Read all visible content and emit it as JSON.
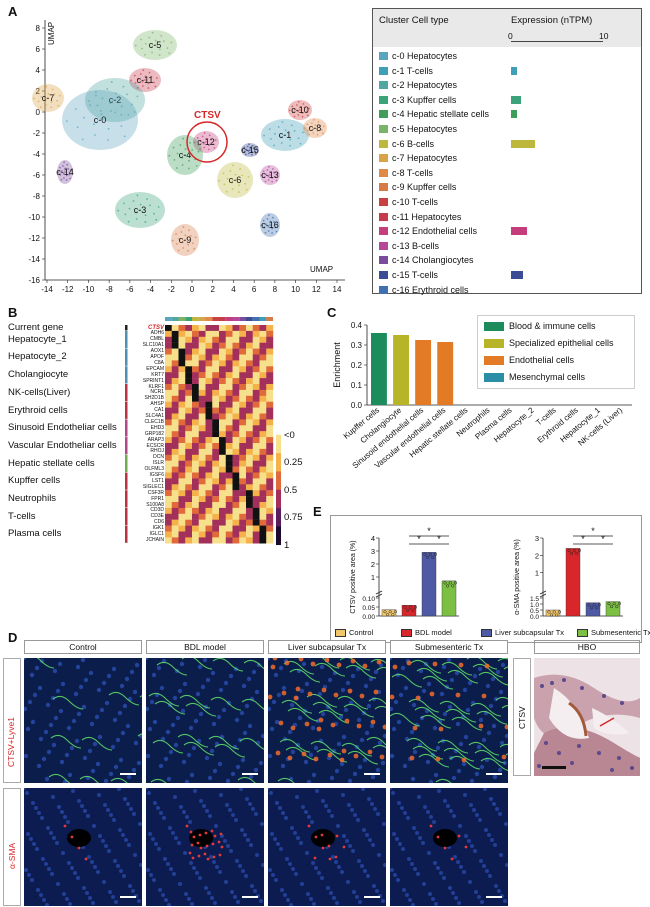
{
  "panel_labels": {
    "a": "A",
    "b": "B",
    "c": "C",
    "d": "D",
    "e": "E",
    "f": "F"
  },
  "umap": {
    "y_axis_label": "UMAP",
    "x_axis_label": "UMAP",
    "y_ticks": [
      "8",
      "6",
      "4",
      "2",
      "0",
      "-2",
      "-4",
      "-6",
      "-8",
      "-10",
      "-12",
      "-14",
      "-16"
    ],
    "x_ticks": [
      "-14",
      "-12",
      "-10",
      "-8",
      "-6",
      "-4",
      "-2",
      "0",
      "2",
      "4",
      "6",
      "8",
      "10",
      "12",
      "14"
    ],
    "highlight": "CTSV",
    "cluster_labels": [
      "c-5",
      "c-7",
      "c-11",
      "c-2",
      "c-0",
      "c-12",
      "c-4",
      "c-10",
      "c-1",
      "c-8",
      "c-15",
      "c-14",
      "c-6",
      "c-13",
      "c-3",
      "c-9",
      "c-16"
    ]
  },
  "legend_table": {
    "col1": "Cluster Cell type",
    "col2": "Expression (nTPM)",
    "tick_min": "0",
    "tick_max": "10",
    "rows": [
      {
        "label": "c-0  Hepatocytes",
        "color": "#5BA3BE",
        "bar": 0
      },
      {
        "label": "c-1  T-cells",
        "color": "#3F9FB8",
        "bar": 0.6
      },
      {
        "label": "c-2  Hepatocytes",
        "color": "#4FA7A0",
        "bar": 0
      },
      {
        "label": "c-3  Kupffer cells",
        "color": "#3BA37A",
        "bar": 1.1
      },
      {
        "label": "c-4  Hepatic stellate cells",
        "color": "#3F9E5A",
        "bar": 0.6
      },
      {
        "label": "c-5  Hepatocytes",
        "color": "#7BB467",
        "bar": 0
      },
      {
        "label": "c-6  B-cells",
        "color": "#BDB83C",
        "bar": 2.6
      },
      {
        "label": "c-7  Hepatocytes",
        "color": "#D9A34A",
        "bar": 0
      },
      {
        "label": "c-8  T-cells",
        "color": "#E08A4A",
        "bar": 0
      },
      {
        "label": "c-9  Kupffer cells",
        "color": "#D67B47",
        "bar": 0
      },
      {
        "label": "c-10  T-cells",
        "color": "#C9413F",
        "bar": 0
      },
      {
        "label": "c-11  Hepatocytes",
        "color": "#C63B4E",
        "bar": 0
      },
      {
        "label": "c-12  Endothelial cells",
        "color": "#C53D7A",
        "bar": 1.7
      },
      {
        "label": "c-13  B-cells",
        "color": "#B5489A",
        "bar": 0
      },
      {
        "label": "c-14  Cholangiocytes",
        "color": "#7C4C9C",
        "bar": 0
      },
      {
        "label": "c-15  T-cells",
        "color": "#3C4C94",
        "bar": 1.3
      },
      {
        "label": "c-16  Erythroid cells",
        "color": "#3F70B0",
        "bar": 0
      }
    ]
  },
  "heatmap": {
    "row_groups": [
      {
        "label": "Current gene",
        "genes": [
          "CTSV"
        ],
        "color": "#222"
      },
      {
        "label": "Hepatocyte_1",
        "genes": [
          "ADH6",
          "CMBL",
          "SLC10A1"
        ],
        "color": "#4F8FB0"
      },
      {
        "label": "Hepatocyte_2",
        "genes": [
          "AOX1",
          "APOF",
          "C8A"
        ],
        "color": "#4F8FB0"
      },
      {
        "label": "Cholangiocyte",
        "genes": [
          "EPCAM",
          "KRT7",
          "SPRINT1"
        ],
        "color": "#4F8FB0"
      },
      {
        "label": "NK-cells(Liver)",
        "genes": [
          "KLRF1",
          "NCR1",
          "SH2D1B"
        ],
        "color": "#B9323F"
      },
      {
        "label": "Erythroid cells",
        "genes": [
          "AHSP",
          "CA1",
          "SLC4A1"
        ],
        "color": "#B9323F"
      },
      {
        "label": "Sinusoid Endotheliar cells",
        "genes": [
          "CLEC1B",
          "EHD3",
          "GRP182"
        ],
        "color": "#B04A86"
      },
      {
        "label": "Vascular Endotheliar cells",
        "genes": [
          "ARAP3",
          "ECSCR",
          "RHOJ"
        ],
        "color": "#B04A86"
      },
      {
        "label": "Hepatic stellate cells",
        "genes": [
          "DCN",
          "ISLR",
          "OLFML3"
        ],
        "color": "#6FAE4E"
      },
      {
        "label": "Kupffer cells",
        "genes": [
          "IGSF6",
          "LST1",
          "SIGLEC1"
        ],
        "color": "#B9323F"
      },
      {
        "label": "Neutrophils",
        "genes": [
          "CSF3R",
          "FPR1",
          "S100A8"
        ],
        "color": "#B9323F"
      },
      {
        "label": "T-cells",
        "genes": [
          "CD3D",
          "CD3E",
          "CD6"
        ],
        "color": "#B9323F"
      },
      {
        "label": "Plasma cells",
        "genes": [
          "IGK1",
          "IGLC1",
          "JCHAIN"
        ],
        "color": "#B9323F"
      }
    ],
    "colorbar": [
      "<0",
      "0.25",
      "0.5",
      "0.75",
      "1"
    ]
  },
  "chart_data": [
    {
      "type": "bar",
      "panel": "C",
      "ylabel": "Enrichment",
      "ylim": [
        0,
        0.4
      ],
      "yticks": [
        "0.0",
        "0.1",
        "0.2",
        "0.3",
        "0.4"
      ],
      "categories": [
        "Kupffer cells",
        "Cholangiocyte",
        "Sinusoid endothelial cells",
        "Vascular endothelial cells",
        "Hepatic stellate cells",
        "Neutrophils",
        "Plasma cells",
        "Hepatocyte_2",
        "T-cells",
        "Erythroid cells",
        "Hepatocyte_1",
        "NK-cells (Liver)"
      ],
      "values": [
        0.36,
        0.35,
        0.325,
        0.315,
        0,
        0,
        0,
        0,
        0,
        0,
        0,
        0
      ],
      "bar_colors": [
        "#1C8C5C",
        "#B8B427",
        "#E37A26",
        "#E37A26",
        "#2A8FA6",
        "#2A8FA6",
        "#2A8FA6",
        "#2A8FA6",
        "#2A8FA6",
        "#2A8FA6",
        "#2A8FA6",
        "#2A8FA6"
      ],
      "legend": [
        {
          "name": "Blood & immune cells",
          "color": "#1C8C5C"
        },
        {
          "name": "Specialized epithelial cells",
          "color": "#B8B427"
        },
        {
          "name": "Endothelial cells",
          "color": "#E37A26"
        },
        {
          "name": "Mesenchymal cells",
          "color": "#2A8FA6"
        }
      ]
    },
    {
      "type": "bar",
      "panel": "E-left",
      "ylabel": "CTSV positive area (%)",
      "yticks_top": [
        "0",
        "1",
        "2",
        "3",
        "4"
      ],
      "yticks_bottom": [
        "0.00",
        "0.05",
        "0.10"
      ],
      "categories": [
        "Control",
        "BDL model",
        "Liver subcapsular Tx",
        "Submesenteric Tx"
      ],
      "values": [
        0.035,
        0.06,
        2.9,
        0.7
      ],
      "significance": [
        "*",
        "*",
        "*"
      ]
    },
    {
      "type": "bar",
      "panel": "E-right",
      "ylabel": "α-SMA positive area (%)",
      "yticks_top": [
        "0",
        "1",
        "2",
        "3"
      ],
      "yticks_bottom": [
        "0.0",
        "0.5",
        "1.0",
        "1.5"
      ],
      "categories": [
        "Control",
        "BDL model",
        "Liver subcapsular Tx",
        "Submesenteric Tx"
      ],
      "values": [
        0.5,
        2.4,
        1.1,
        1.2
      ],
      "significance": [
        "*",
        "*",
        "*"
      ]
    }
  ],
  "e_legend": [
    {
      "name": "Control",
      "color": "#F2C76A"
    },
    {
      "name": "BDL model",
      "color": "#D9262A"
    },
    {
      "name": "Liver subcapsular Tx",
      "color": "#4E5AA6"
    },
    {
      "name": "Submesenteric Tx",
      "color": "#7BC043"
    }
  ],
  "panel_d": {
    "columns": [
      "Control",
      "BDL model",
      "Liver subcapsular Tx",
      "Submesenteric Tx"
    ],
    "row1_label": "CTSV+Lyve1",
    "row2_label": "α-SMA"
  },
  "panel_f": {
    "header": "HBO",
    "side_label": "CTSV"
  }
}
